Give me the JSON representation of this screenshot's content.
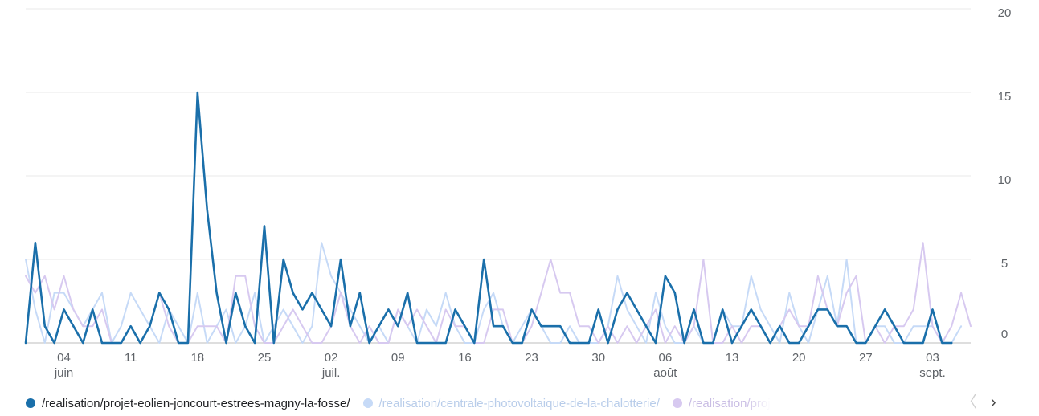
{
  "chart_data": {
    "type": "line",
    "grid": true,
    "ylim": [
      0,
      20
    ],
    "yticks": [
      0,
      5,
      10,
      15,
      20
    ],
    "x_start": "2023-05-31",
    "x_end": "2023-09-07",
    "x_ticks": [
      {
        "day": "04",
        "month": "juin",
        "date": "2023-06-04"
      },
      {
        "day": "11",
        "month": "",
        "date": "2023-06-11"
      },
      {
        "day": "18",
        "month": "",
        "date": "2023-06-18"
      },
      {
        "day": "25",
        "month": "",
        "date": "2023-06-25"
      },
      {
        "day": "02",
        "month": "juil.",
        "date": "2023-07-02"
      },
      {
        "day": "09",
        "month": "",
        "date": "2023-07-09"
      },
      {
        "day": "16",
        "month": "",
        "date": "2023-07-16"
      },
      {
        "day": "23",
        "month": "",
        "date": "2023-07-23"
      },
      {
        "day": "30",
        "month": "",
        "date": "2023-07-30"
      },
      {
        "day": "06",
        "month": "août",
        "date": "2023-08-06"
      },
      {
        "day": "13",
        "month": "",
        "date": "2023-08-13"
      },
      {
        "day": "20",
        "month": "",
        "date": "2023-08-20"
      },
      {
        "day": "27",
        "month": "",
        "date": "2023-08-27"
      },
      {
        "day": "03",
        "month": "sept.",
        "date": "2023-09-03"
      }
    ],
    "series": [
      {
        "name": "/realisation/centrale-photovoltaique-de-la-chalotterie/",
        "color": "#c6daf7",
        "values": [
          5,
          2,
          0,
          3,
          3,
          2,
          1,
          2,
          3,
          0,
          1,
          3,
          2,
          1,
          0,
          2,
          1,
          0,
          3,
          0,
          1,
          2,
          0,
          1,
          3,
          0,
          1,
          2,
          1,
          0,
          1,
          6,
          4,
          3,
          2,
          1,
          0,
          1,
          0,
          2,
          1,
          0,
          2,
          1,
          3,
          1,
          0,
          0,
          2,
          3,
          1,
          0,
          1,
          2,
          1,
          0,
          0,
          1,
          0,
          0,
          0,
          1,
          4,
          2,
          1,
          0,
          3,
          1,
          0,
          0,
          1,
          0,
          0,
          2,
          1,
          1,
          4,
          2,
          1,
          0,
          3,
          1,
          0,
          2,
          4,
          1,
          5,
          0,
          0,
          1,
          1,
          0,
          0,
          1,
          1,
          1,
          0,
          0,
          1
        ]
      },
      {
        "name": "/realisation/projet-eolien-joncourt-estrees-magny-la-fosse/",
        "color": "#d7c9f0",
        "values": [
          4,
          3,
          4,
          2,
          4,
          2,
          1,
          1,
          2,
          0,
          0,
          1,
          0,
          1,
          3,
          1,
          0,
          0,
          1,
          1,
          1,
          0,
          4,
          4,
          1,
          0,
          0,
          1,
          2,
          1,
          0,
          0,
          1,
          3,
          1,
          0,
          1,
          0,
          0,
          2,
          1,
          2,
          1,
          0,
          2,
          1,
          1,
          0,
          0,
          2,
          2,
          0,
          0,
          1,
          3,
          5,
          3,
          3,
          1,
          1,
          0,
          1,
          0,
          1,
          0,
          1,
          2,
          0,
          1,
          0,
          1,
          5,
          0,
          0,
          1,
          0,
          1,
          1,
          0,
          1,
          2,
          1,
          1,
          4,
          2,
          1,
          3,
          4,
          0,
          1,
          0,
          1,
          1,
          2,
          6,
          1,
          0,
          1,
          3,
          1
        ]
      },
      {
        "name": "/realisation/projet-eolien-joncourt-estrees-magny-la-fosse/",
        "color": "#1a6faa",
        "values": [
          0,
          6,
          1,
          0,
          2,
          1,
          0,
          2,
          0,
          0,
          0,
          1,
          0,
          1,
          3,
          2,
          0,
          0,
          15,
          8,
          3,
          0,
          3,
          1,
          0,
          7,
          0,
          5,
          3,
          2,
          3,
          2,
          1,
          5,
          1,
          3,
          0,
          1,
          2,
          1,
          3,
          0,
          0,
          0,
          0,
          2,
          1,
          0,
          5,
          1,
          1,
          0,
          0,
          2,
          1,
          1,
          1,
          0,
          0,
          0,
          2,
          0,
          2,
          3,
          2,
          1,
          0,
          4,
          3,
          0,
          2,
          0,
          0,
          2,
          0,
          1,
          2,
          1,
          0,
          1,
          0,
          0,
          1,
          2,
          2,
          1,
          1,
          0,
          0,
          1,
          2,
          1,
          0,
          0,
          0,
          2,
          0,
          0
        ]
      }
    ]
  },
  "legend": {
    "items": [
      {
        "label": "/realisation/projet-eolien-joncourt-estrees-magny-la-fosse/",
        "color": "#1a6faa",
        "text_color": "#202124"
      },
      {
        "label": "/realisation/centrale-photovoltaique-de-la-chalotterie/",
        "color": "#c6daf7",
        "text_color": "#b9cdea"
      },
      {
        "label": "/realisation/proj",
        "color": "#d7c9f0",
        "text_color": "#c9bde4"
      }
    ],
    "prev_icon": "chevron-left-icon",
    "next_icon": "chevron-right-icon",
    "prev_glyph": "〈",
    "next_glyph": "›"
  }
}
